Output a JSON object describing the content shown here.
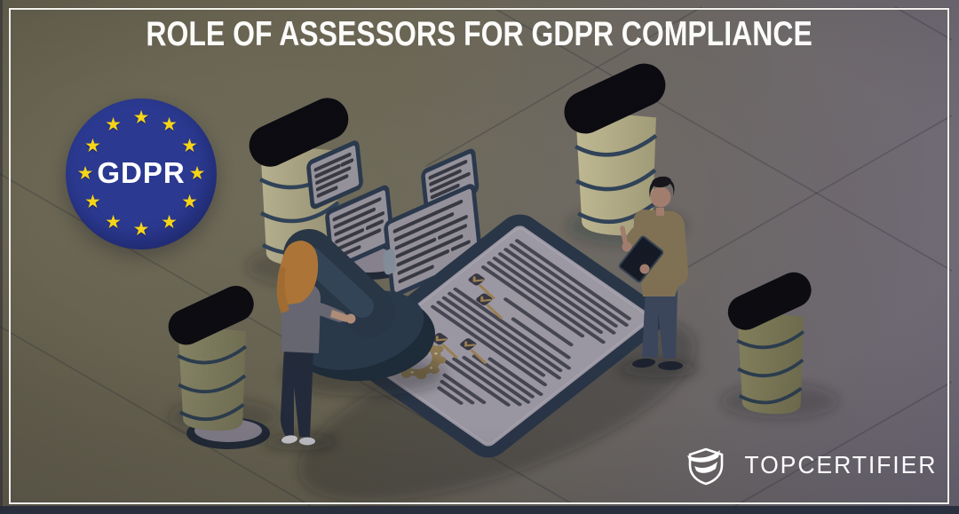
{
  "poster": {
    "title": "ROLE OF ASSESSORS FOR GDPR COMPLIANCE"
  },
  "gdpr_badge": {
    "label": "GDPR",
    "star_count": 12
  },
  "brand": {
    "name": "TOPCERTIFIER",
    "icon": "shield-swoosh-icon"
  },
  "colors": {
    "background_olive": "#6e6952",
    "background_purple": "#7a7482",
    "frame_white": "#f2f1ec",
    "title_white": "#fbfbf9",
    "badge_blue": "#2b3990",
    "star_yellow": "#f6d418",
    "navy_dark": "#2c3a4d",
    "khaki_server": "#c9c39c",
    "bottom_strip": "#262b3c"
  },
  "illustration": {
    "scene": "isometric-gdpr-assessment-scene",
    "elements": [
      "server-tower",
      "server-tower",
      "server-tower",
      "server-tower",
      "floating-document-card",
      "floating-document-card",
      "floating-document-card",
      "floating-document-card",
      "compliance-document",
      "checkbox-with-tick",
      "wax-seal",
      "approval-stamp",
      "assessor-with-stamp",
      "assessor-with-tablet",
      "floor-ring",
      "floor-ring"
    ]
  }
}
